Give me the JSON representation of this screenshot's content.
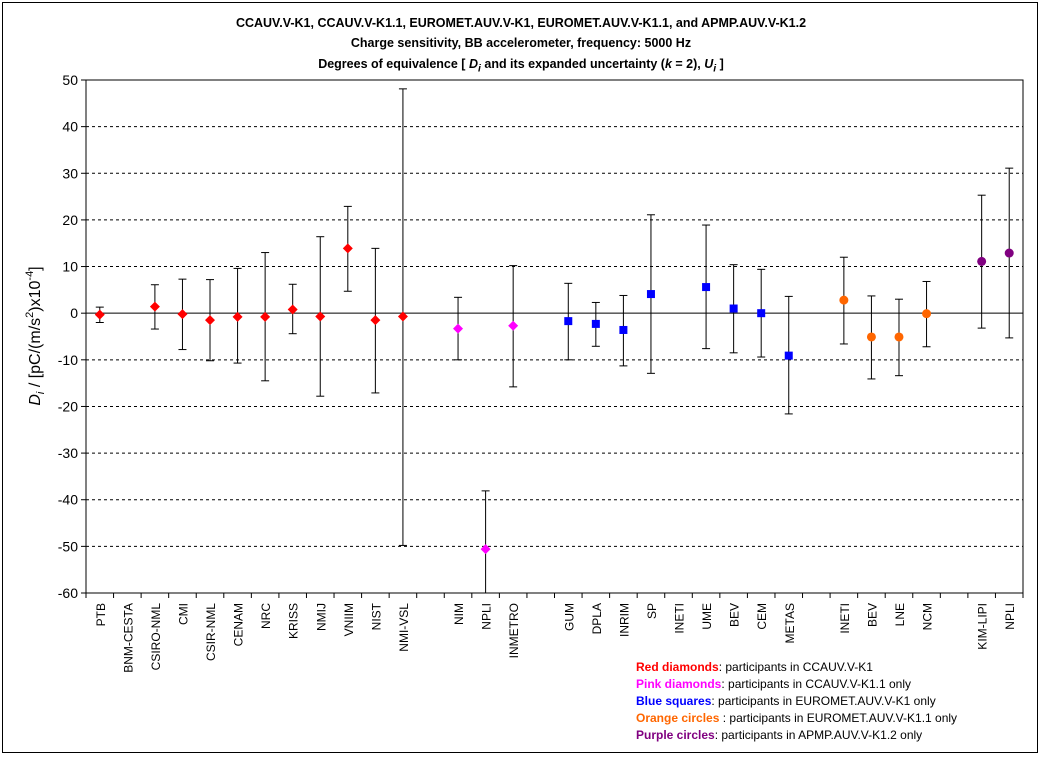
{
  "title_lines": [
    "CCAUV.V-K1, CCAUV.V-K1.1, EUROMET.AUV.V-K1, EUROMET.AUV.V-K1.1, and APMP.AUV.V-K1.2",
    "Charge sensitivity, BB accelerometer, frequency: 5000 Hz"
  ],
  "title_line3": {
    "prefix": "Degrees of equivalence [ ",
    "d": "D",
    "d_sub": "i",
    "mid1": "  and its expanded uncertainty (",
    "k": "k",
    "mid2": " = 2), ",
    "u": "U",
    "u_sub": "i",
    "suffix": " ]"
  },
  "ylabel": {
    "d": "D",
    "d_sub": "i",
    "text1": " / [pC/(m/s",
    "sup2": "2",
    "text2": ")x10",
    "sup_exp": "-4",
    "text3": "]"
  },
  "colors": {
    "red": "#ff0000",
    "pink": "#ff00ff",
    "blue": "#0000ff",
    "orange": "#ff6600",
    "purple": "#800080",
    "plot_bg": "#ffffff",
    "grid": "#000000"
  },
  "legend": [
    {
      "key": "Red diamonds",
      "text": ": participants in CCAUV.V-K1",
      "color": "#ff0000"
    },
    {
      "key": "Pink diamonds",
      "text": ": participants in CCAUV.V-K1.1 only",
      "color": "#ff00ff"
    },
    {
      "key": "Blue squares",
      "text": ": participants in EUROMET.AUV.V-K1 only",
      "color": "#0000ff"
    },
    {
      "key": "Orange circles",
      "text": " : participants in EUROMET.AUV.V-K1.1 only",
      "color": "#ff6600"
    },
    {
      "key": "Purple circles",
      "text": ": participants in APMP.AUV.V-K1.2 only",
      "color": "#800080"
    }
  ],
  "chart_data": {
    "type": "scatter",
    "ylim": [
      -60,
      50
    ],
    "yticks": [
      -60,
      -50,
      -40,
      -30,
      -20,
      -10,
      0,
      10,
      20,
      30,
      40,
      50
    ],
    "grid": "horizontal dashed",
    "slots": 34,
    "points": [
      {
        "label": "PTB",
        "slot": 1,
        "y": -0.3,
        "lo": -2.0,
        "hi": 1.3,
        "marker": "diamond",
        "group": "red"
      },
      {
        "label": "BNM-CESTA",
        "slot": 2,
        "y": null,
        "lo": null,
        "hi": null,
        "marker": "diamond",
        "group": "red"
      },
      {
        "label": "CSIRO-NML",
        "slot": 3,
        "y": 1.4,
        "lo": -3.4,
        "hi": 6.1,
        "marker": "diamond",
        "group": "red"
      },
      {
        "label": "CMI",
        "slot": 4,
        "y": -0.2,
        "lo": -7.8,
        "hi": 7.3,
        "marker": "diamond",
        "group": "red"
      },
      {
        "label": "CSIR-NML",
        "slot": 5,
        "y": -1.5,
        "lo": -10.2,
        "hi": 7.2,
        "marker": "diamond",
        "group": "red"
      },
      {
        "label": "CENAM",
        "slot": 6,
        "y": -0.8,
        "lo": -10.7,
        "hi": 9.6,
        "marker": "diamond",
        "group": "red"
      },
      {
        "label": "NRC",
        "slot": 7,
        "y": -0.8,
        "lo": -14.5,
        "hi": 13.0,
        "marker": "diamond",
        "group": "red"
      },
      {
        "label": "KRISS",
        "slot": 8,
        "y": 0.8,
        "lo": -4.4,
        "hi": 6.2,
        "marker": "diamond",
        "group": "red"
      },
      {
        "label": "NMIJ",
        "slot": 9,
        "y": -0.7,
        "lo": -17.8,
        "hi": 16.4,
        "marker": "diamond",
        "group": "red"
      },
      {
        "label": "VNIIM",
        "slot": 10,
        "y": 13.9,
        "lo": 4.7,
        "hi": 22.9,
        "marker": "diamond",
        "group": "red"
      },
      {
        "label": "NIST",
        "slot": 11,
        "y": -1.5,
        "lo": -17.1,
        "hi": 13.9,
        "marker": "diamond",
        "group": "red"
      },
      {
        "label": "NMI-VSL",
        "slot": 12,
        "y": -0.7,
        "lo": -49.8,
        "hi": 48.1,
        "marker": "diamond",
        "group": "red"
      },
      {
        "label": "NIM",
        "slot": 14,
        "y": -3.3,
        "lo": -10.0,
        "hi": 3.4,
        "marker": "diamond",
        "group": "pink"
      },
      {
        "label": "NPLI",
        "slot": 15,
        "y": -50.6,
        "lo": -60,
        "hi": -38.1,
        "marker": "diamond",
        "group": "pink"
      },
      {
        "label": "INMETRO",
        "slot": 16,
        "y": -2.7,
        "lo": -15.8,
        "hi": 10.2,
        "marker": "diamond",
        "group": "pink"
      },
      {
        "label": "GUM",
        "slot": 18,
        "y": -1.7,
        "lo": -10.0,
        "hi": 6.4,
        "marker": "square",
        "group": "blue"
      },
      {
        "label": "DPLA",
        "slot": 19,
        "y": -2.3,
        "lo": -7.1,
        "hi": 2.3,
        "marker": "square",
        "group": "blue"
      },
      {
        "label": "INRIM",
        "slot": 20,
        "y": -3.6,
        "lo": -11.3,
        "hi": 3.8,
        "marker": "square",
        "group": "blue"
      },
      {
        "label": "SP",
        "slot": 21,
        "y": 4.1,
        "lo": -12.9,
        "hi": 21.1,
        "marker": "square",
        "group": "blue"
      },
      {
        "label": "INETI",
        "slot": 22,
        "y": null,
        "lo": null,
        "hi": null,
        "marker": "square",
        "group": "blue"
      },
      {
        "label": "UME",
        "slot": 23,
        "y": 5.6,
        "lo": -7.6,
        "hi": 18.9,
        "marker": "square",
        "group": "blue"
      },
      {
        "label": "BEV",
        "slot": 24,
        "y": 1.0,
        "lo": -8.5,
        "hi": 10.4,
        "marker": "square",
        "group": "blue"
      },
      {
        "label": "CEM",
        "slot": 25,
        "y": 0.0,
        "lo": -9.4,
        "hi": 9.4,
        "marker": "square",
        "group": "blue"
      },
      {
        "label": "METAS",
        "slot": 26,
        "y": -9.1,
        "lo": -21.6,
        "hi": 3.6,
        "marker": "square",
        "group": "blue"
      },
      {
        "label": "INETI",
        "slot": 28,
        "y": 2.8,
        "lo": -6.6,
        "hi": 12.0,
        "marker": "circle",
        "group": "orange"
      },
      {
        "label": "BEV",
        "slot": 29,
        "y": -5.1,
        "lo": -14.1,
        "hi": 3.7,
        "marker": "circle",
        "group": "orange"
      },
      {
        "label": "LNE",
        "slot": 30,
        "y": -5.1,
        "lo": -13.4,
        "hi": 3.0,
        "marker": "circle",
        "group": "orange"
      },
      {
        "label": "NCM",
        "slot": 31,
        "y": -0.1,
        "lo": -7.2,
        "hi": 6.8,
        "marker": "circle",
        "group": "orange"
      },
      {
        "label": "KIM-LIPI",
        "slot": 33,
        "y": 11.1,
        "lo": -3.2,
        "hi": 25.3,
        "marker": "circle",
        "group": "purple"
      },
      {
        "label": "NPLI",
        "slot": 34,
        "y": 12.9,
        "lo": -5.3,
        "hi": 31.1,
        "marker": "circle",
        "group": "purple"
      }
    ]
  }
}
